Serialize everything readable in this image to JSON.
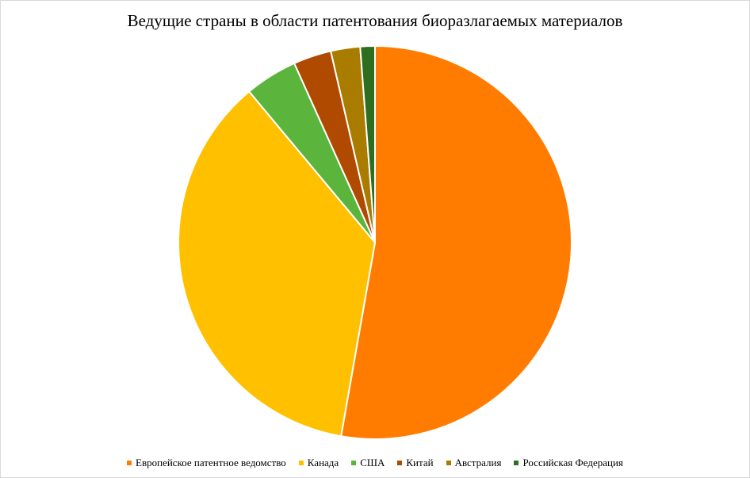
{
  "chart_data": {
    "type": "pie",
    "title": "Ведущие страны в области патентования биоразлагаемых материалов",
    "categories": [
      "Европейское патентное ведомство",
      "Канада",
      "США",
      "Китай",
      "Австралия",
      "Российская Федерация"
    ],
    "values": [
      52.5,
      36.0,
      4.3,
      3.1,
      2.4,
      1.2
    ],
    "colors": [
      "#ff7c00",
      "#ffc000",
      "#5bb53c",
      "#b04a00",
      "#a97c00",
      "#2e6e1f"
    ],
    "legend_position": "bottom",
    "start_angle_deg": 0,
    "direction": "clockwise"
  }
}
